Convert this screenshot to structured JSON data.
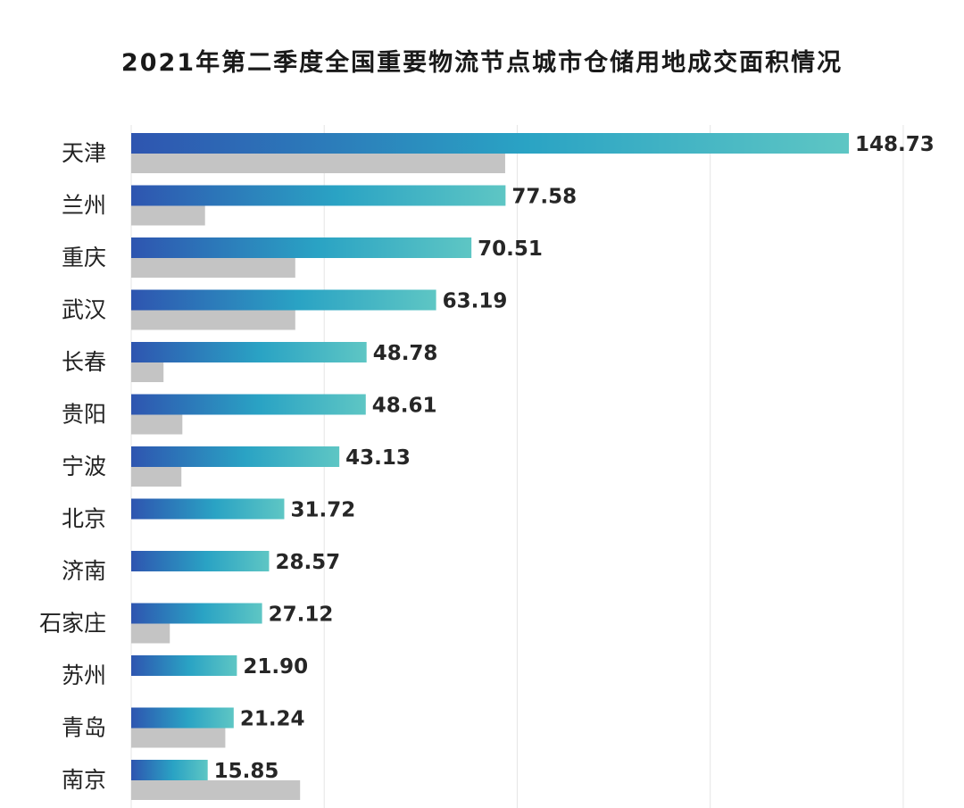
{
  "chart_data": {
    "type": "bar",
    "orientation": "horizontal",
    "title": "2021年第二季度全国重要物流节点城市仓储用地成交面积情况",
    "categories": [
      "天津",
      "兰州",
      "重庆",
      "武汉",
      "长春",
      "贵阳",
      "宁波",
      "北京",
      "济南",
      "石家庄",
      "苏州",
      "青岛",
      "南京"
    ],
    "series": [
      {
        "values": [
          148.73,
          77.58,
          70.51,
          63.19,
          48.78,
          48.61,
          43.13,
          31.72,
          28.57,
          27.12,
          21.9,
          21.24,
          15.85
        ],
        "color_start": "#2e55b0",
        "color_mid": "#2aa3c4",
        "color_end": "#5ec6c4",
        "labels": [
          "148.73",
          "77.58",
          "70.51",
          "63.19",
          "48.78",
          "48.61",
          "43.13",
          "31.72",
          "28.57",
          "27.12",
          "21.90",
          "21.24",
          "15.85"
        ]
      },
      {
        "values": [
          77.5,
          15.3,
          34.0,
          34.0,
          6.7,
          10.6,
          10.4,
          0,
          0,
          8.0,
          0,
          19.5,
          35.0
        ],
        "color": "#c4c4c4"
      }
    ],
    "xlim": [
      0,
      160
    ],
    "grid": true,
    "legend": "none"
  }
}
